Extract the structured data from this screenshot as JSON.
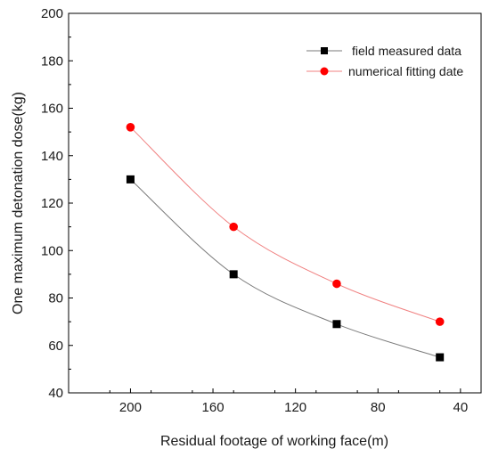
{
  "chart_data": {
    "type": "scatter",
    "title": "",
    "xlabel": "Residual footage of working face(m)",
    "ylabel": "One maximum detonation dose(kg)",
    "xlim": [
      230,
      30
    ],
    "ylim": [
      40,
      200
    ],
    "x_ticks": [
      200,
      160,
      120,
      80,
      40
    ],
    "y_ticks": [
      40,
      60,
      80,
      100,
      120,
      140,
      160,
      180,
      200
    ],
    "grid": false,
    "legend_position": "top-right",
    "series": [
      {
        "name": "field measured data",
        "marker": "square",
        "color": "#000000",
        "line_color": "#7a7a7a",
        "x": [
          200,
          150,
          100,
          50
        ],
        "y": [
          130,
          90,
          69,
          55
        ]
      },
      {
        "name": "numerical fitting date",
        "marker": "circle",
        "color": "#ff0000",
        "line_color": "#f08080",
        "x": [
          200,
          150,
          100,
          50
        ],
        "y": [
          152,
          110,
          86,
          70
        ]
      }
    ]
  }
}
